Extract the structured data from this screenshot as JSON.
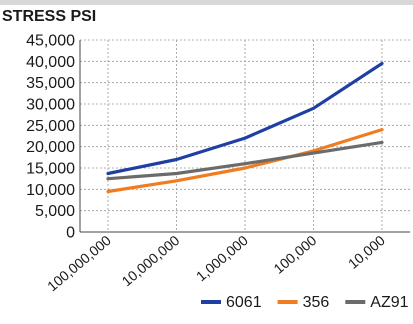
{
  "chart_data": {
    "type": "line",
    "ylabel": "STRESS PSI",
    "xlabel": "",
    "categories": [
      "100,000,000",
      "10,000,000",
      "1,000,000",
      "100,000",
      "10,000"
    ],
    "yticks": [
      "45,000",
      "40,000",
      "35,000",
      "30,000",
      "25,000",
      "20,000",
      "15,000",
      "10,000",
      "5,000",
      "0"
    ],
    "ylim": [
      0,
      45000
    ],
    "grid": true,
    "legend_position": "bottom-right",
    "series": [
      {
        "name": "6061",
        "color": "#1f3fa3",
        "values": [
          13700,
          17000,
          22000,
          29000,
          39500
        ]
      },
      {
        "name": "356",
        "color": "#f07c1f",
        "values": [
          9500,
          12000,
          15000,
          19000,
          24000
        ]
      },
      {
        "name": "AZ91",
        "color": "#6b6b6b",
        "values": [
          12500,
          13700,
          16000,
          18500,
          21000
        ]
      }
    ]
  }
}
